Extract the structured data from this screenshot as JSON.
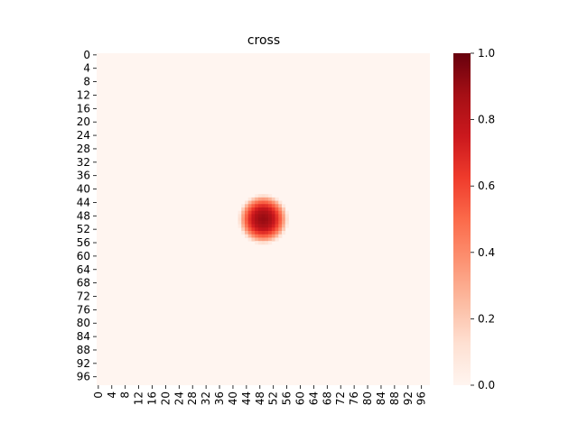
{
  "chart_data": {
    "type": "heatmap",
    "title": "cross",
    "xlabel": "",
    "ylabel": "",
    "grid_size": 99,
    "x_ticks": [
      "0",
      "4",
      "8",
      "12",
      "16",
      "20",
      "24",
      "28",
      "32",
      "36",
      "40",
      "44",
      "48",
      "52",
      "56",
      "60",
      "64",
      "68",
      "72",
      "76",
      "80",
      "84",
      "88",
      "92",
      "96"
    ],
    "y_ticks": [
      "0",
      "4",
      "8",
      "12",
      "16",
      "20",
      "24",
      "28",
      "32",
      "36",
      "40",
      "44",
      "48",
      "52",
      "56",
      "60",
      "64",
      "68",
      "72",
      "76",
      "80",
      "84",
      "88",
      "92",
      "96"
    ],
    "colormap": "Reds",
    "colormap_stops": [
      "#fff5f0",
      "#fee0d2",
      "#fcbba1",
      "#fc9272",
      "#fb6a4a",
      "#ef3b2c",
      "#cb181d",
      "#a50f15",
      "#67000d"
    ],
    "vmin": 0.0,
    "vmax": 1.0,
    "colorbar_ticks": [
      "0.0",
      "0.2",
      "0.4",
      "0.6",
      "0.8",
      "1.0"
    ],
    "blob": {
      "center_x": 49,
      "center_y": 49,
      "radius": 6.5,
      "peak_value": 0.9,
      "description": "circular hotspot of high values, all other cells ≈ 0"
    }
  }
}
